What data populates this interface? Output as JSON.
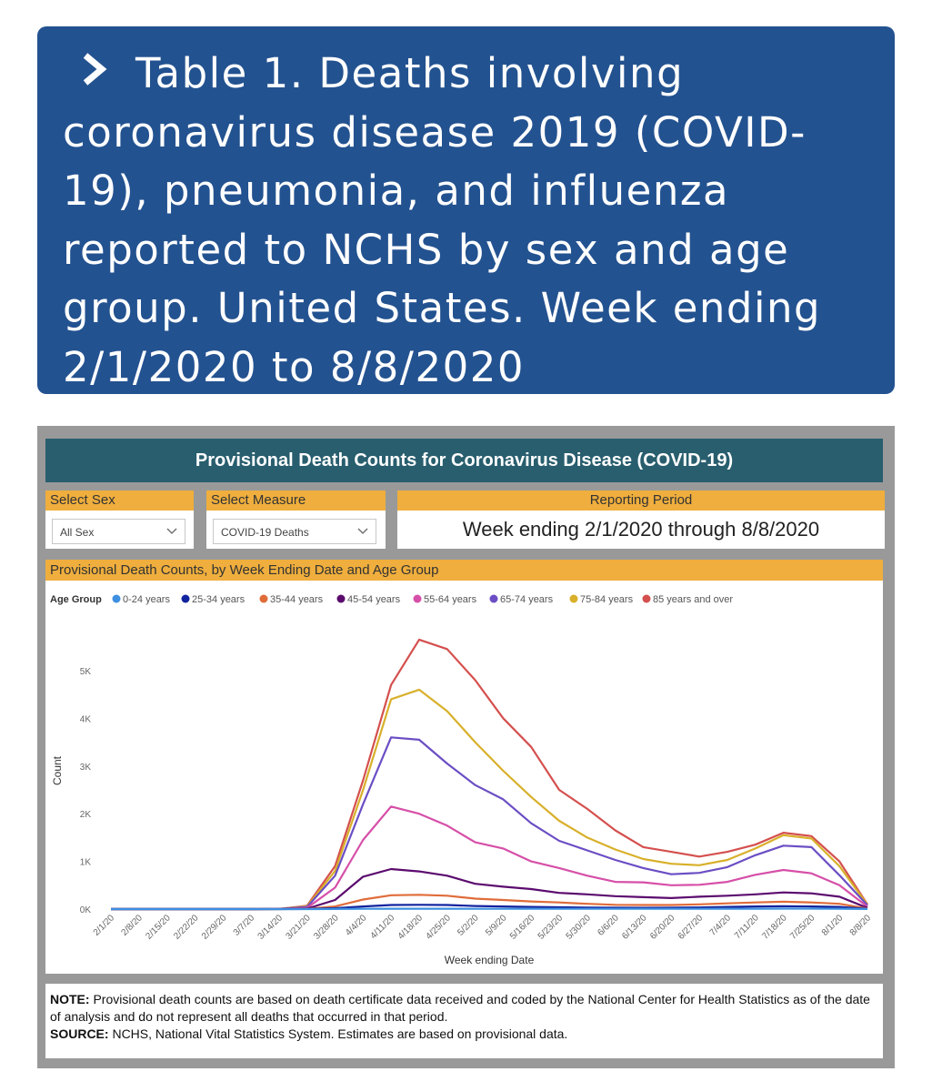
{
  "title": "Table 1. Deaths involving coronavirus disease 2019 (COVID-19), pneumonia, and influenza reported to NCHS by sex and age group. United States. Week ending 2/1/2020 to 8/8/2020",
  "dashboard": {
    "header": "Provisional Death Counts for Coronavirus Disease (COVID-19)",
    "select_sex_label": "Select Sex",
    "select_sex_value": "All Sex",
    "select_measure_label": "Select Measure",
    "select_measure_value": "COVID-19 Deaths",
    "reporting_period_label": "Reporting Period",
    "reporting_period_value": "Week ending 2/1/2020 through 8/8/2020",
    "chart_panel_title": "Provisional Death Counts, by Week Ending Date and Age Group"
  },
  "note": {
    "note_label": "NOTE:",
    "note_text": "Provisional death counts are based on death certificate data received and coded by the National Center for Health Statistics as of the date of analysis and do not represent all deaths that occurred in that period.",
    "source_label": "SOURCE:",
    "source_text": "NCHS, National Vital Statistics System. Estimates are based on provisional data."
  },
  "chart_data": {
    "type": "line",
    "legend_title": "Age Group",
    "xlabel": "Week ending Date",
    "ylabel": "Count",
    "ylim": [
      0,
      5800
    ],
    "yticks": [
      0,
      1000,
      2000,
      3000,
      4000,
      5000
    ],
    "ytick_labels": [
      "0K",
      "1K",
      "2K",
      "3K",
      "4K",
      "5K"
    ],
    "categories": [
      "2/1/20",
      "2/8/20",
      "2/15/20",
      "2/22/20",
      "2/29/20",
      "3/7/20",
      "3/14/20",
      "3/21/20",
      "3/28/20",
      "4/4/20",
      "4/11/20",
      "4/18/20",
      "4/25/20",
      "5/2/20",
      "5/9/20",
      "5/16/20",
      "5/23/20",
      "5/30/20",
      "6/6/20",
      "6/13/20",
      "6/20/20",
      "6/27/20",
      "7/4/20",
      "7/11/20",
      "7/18/20",
      "7/25/20",
      "8/1/20",
      "8/8/20"
    ],
    "series": [
      {
        "name": "0-24 years",
        "color": "#3d8fe0",
        "values": [
          0,
          0,
          0,
          0,
          0,
          0,
          0,
          0,
          2,
          5,
          8,
          8,
          8,
          6,
          6,
          5,
          5,
          5,
          5,
          5,
          5,
          6,
          7,
          8,
          10,
          9,
          8,
          1
        ]
      },
      {
        "name": "25-34 years",
        "color": "#12239e",
        "values": [
          0,
          0,
          0,
          0,
          0,
          0,
          0,
          2,
          20,
          55,
          85,
          90,
          85,
          65,
          55,
          45,
          38,
          32,
          28,
          26,
          28,
          35,
          45,
          55,
          60,
          55,
          45,
          5
        ]
      },
      {
        "name": "35-44 years",
        "color": "#e06c3a",
        "values": [
          0,
          0,
          0,
          0,
          0,
          0,
          0,
          5,
          55,
          200,
          290,
          300,
          280,
          220,
          190,
          160,
          140,
          110,
          90,
          85,
          85,
          100,
          120,
          140,
          155,
          140,
          110,
          12
        ]
      },
      {
        "name": "45-54 years",
        "color": "#5b0b6e",
        "values": [
          0,
          0,
          0,
          0,
          0,
          0,
          1,
          10,
          190,
          680,
          840,
          790,
          700,
          530,
          470,
          420,
          340,
          310,
          270,
          250,
          230,
          260,
          280,
          310,
          350,
          330,
          260,
          25
        ]
      },
      {
        "name": "55-64 years",
        "color": "#d64fa8",
        "values": [
          0,
          0,
          0,
          0,
          0,
          0,
          1,
          25,
          450,
          1450,
          2150,
          2000,
          1750,
          1400,
          1270,
          1000,
          860,
          700,
          570,
          560,
          500,
          510,
          570,
          720,
          820,
          750,
          500,
          50
        ]
      },
      {
        "name": "65-74 years",
        "color": "#6b4ec4",
        "values": [
          0,
          0,
          0,
          0,
          0,
          0,
          2,
          45,
          700,
          2200,
          3600,
          3550,
          3050,
          2600,
          2300,
          1800,
          1430,
          1230,
          1030,
          860,
          730,
          760,
          880,
          1130,
          1330,
          1300,
          710,
          80
        ]
      },
      {
        "name": "75-84 years",
        "color": "#d8b02a",
        "values": [
          0,
          0,
          0,
          0,
          0,
          0,
          2,
          60,
          800,
          2500,
          4400,
          4600,
          4150,
          3500,
          2900,
          2350,
          1850,
          1500,
          1250,
          1050,
          950,
          920,
          1030,
          1270,
          1550,
          1480,
          900,
          90
        ]
      },
      {
        "name": "85 years and over",
        "color": "#d4504e",
        "values": [
          0,
          0,
          0,
          0,
          0,
          0,
          3,
          70,
          900,
          2700,
          4700,
          5650,
          5450,
          4800,
          4000,
          3400,
          2500,
          2100,
          1650,
          1300,
          1200,
          1100,
          1200,
          1350,
          1600,
          1530,
          1000,
          100
        ]
      }
    ]
  }
}
